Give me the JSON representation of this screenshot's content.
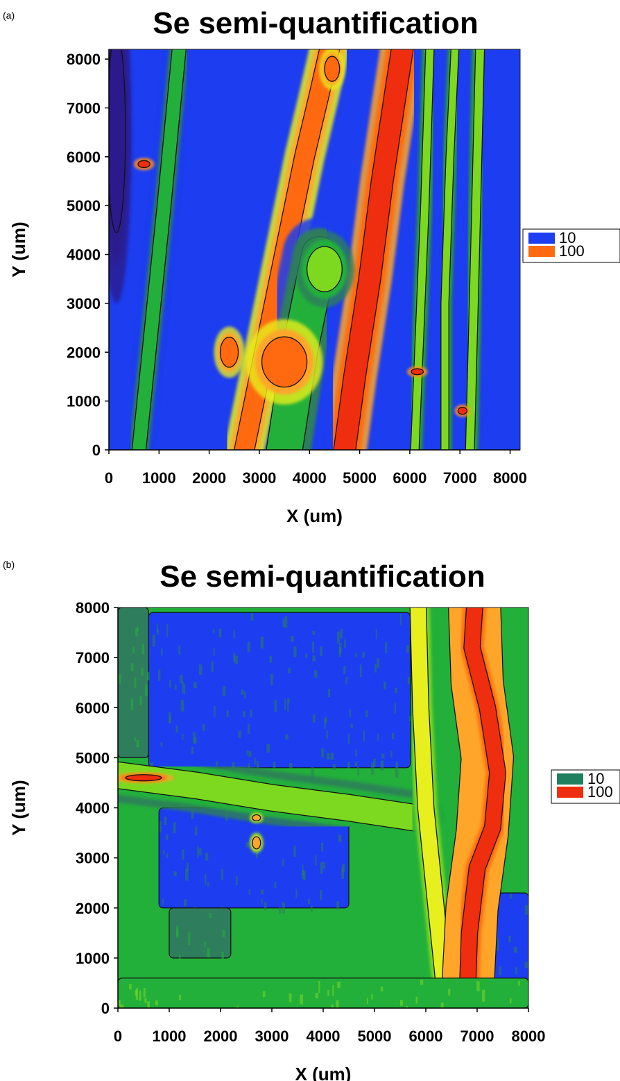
{
  "chart_data": [
    {
      "panel_label": "(a)",
      "type": "heatmap",
      "title": "Se semi-quantification",
      "xlabel": "X (um)",
      "ylabel": "Y (um)",
      "xlim": [
        0,
        8200
      ],
      "ylim": [
        0,
        8200
      ],
      "x_ticks": [
        0,
        1000,
        2000,
        3000,
        4000,
        5000,
        6000,
        7000,
        8000
      ],
      "y_ticks": [
        0,
        1000,
        2000,
        3000,
        4000,
        5000,
        6000,
        7000,
        8000
      ],
      "legend": [
        {
          "label": "10",
          "color": "#1c3df0"
        },
        {
          "label": "100",
          "color": "#ff6a10"
        }
      ],
      "legend_position": "right",
      "colorscale": [
        "#2a1a8c",
        "#1c3df0",
        "#2e7d5c",
        "#22b03a",
        "#7dd820",
        "#e8ef1e",
        "#ffa62a",
        "#ff6a10",
        "#ee2e0e"
      ],
      "colors": {
        "background": "#1c3df0"
      },
      "features": [
        {
          "kind": "band",
          "level": 7,
          "width": 380,
          "points": [
            [
              2700,
              0
            ],
            [
              3000,
              1500
            ],
            [
              3300,
              3000
            ],
            [
              3600,
              4500
            ],
            [
              3900,
              6000
            ],
            [
              4200,
              7300
            ],
            [
              4400,
              8200
            ]
          ]
        },
        {
          "kind": "band",
          "level": 8,
          "width": 420,
          "points": [
            [
              4700,
              0
            ],
            [
              4900,
              1500
            ],
            [
              5200,
              3500
            ],
            [
              5450,
              5500
            ],
            [
              5700,
              7200
            ],
            [
              5850,
              8200
            ]
          ]
        },
        {
          "kind": "band",
          "level": 4,
          "width": 150,
          "points": [
            [
              6100,
              0
            ],
            [
              6200,
              2500
            ],
            [
              6300,
              5000
            ],
            [
              6400,
              8200
            ]
          ]
        },
        {
          "kind": "band",
          "level": 4,
          "width": 140,
          "points": [
            [
              6700,
              0
            ],
            [
              6700,
              3000
            ],
            [
              6800,
              6000
            ],
            [
              6900,
              8200
            ]
          ]
        },
        {
          "kind": "band",
          "level": 4,
          "width": 160,
          "points": [
            [
              7200,
              0
            ],
            [
              7300,
              4000
            ],
            [
              7400,
              8200
            ]
          ]
        },
        {
          "kind": "band",
          "level": 3,
          "width": 260,
          "points": [
            [
              600,
              0
            ],
            [
              800,
              2000
            ],
            [
              1100,
              5000
            ],
            [
              1400,
              8200
            ]
          ]
        },
        {
          "kind": "band",
          "level": 3,
          "width": 700,
          "points": [
            [
              3500,
              0
            ],
            [
              3800,
              2000
            ],
            [
              4200,
              4000
            ]
          ]
        },
        {
          "kind": "blob",
          "level": 7,
          "cx": 3500,
          "cy": 1800,
          "rx": 450,
          "ry": 500
        },
        {
          "kind": "blob",
          "level": 7,
          "cx": 2400,
          "cy": 2000,
          "rx": 180,
          "ry": 300
        },
        {
          "kind": "blob",
          "level": 7,
          "cx": 4450,
          "cy": 7800,
          "rx": 150,
          "ry": 250
        },
        {
          "kind": "blob",
          "level": 8,
          "cx": 700,
          "cy": 5850,
          "rx": 120,
          "ry": 70
        },
        {
          "kind": "blob",
          "level": 8,
          "cx": 6150,
          "cy": 1600,
          "rx": 120,
          "ry": 60
        },
        {
          "kind": "blob",
          "level": 8,
          "cx": 7050,
          "cy": 800,
          "rx": 90,
          "ry": 70
        },
        {
          "kind": "blob",
          "level": 4,
          "cx": 4300,
          "cy": 3700,
          "rx": 350,
          "ry": 450
        },
        {
          "kind": "blob",
          "level": 0,
          "cx": 150,
          "cy": 6500,
          "rx": 180,
          "ry": 2000
        }
      ]
    },
    {
      "panel_label": "(b)",
      "type": "heatmap",
      "title": "Se semi-quantification",
      "xlabel": "X (um)",
      "ylabel": "Y (um)",
      "xlim": [
        0,
        8000
      ],
      "ylim": [
        0,
        8000
      ],
      "x_ticks": [
        0,
        1000,
        2000,
        3000,
        4000,
        5000,
        6000,
        7000,
        8000
      ],
      "y_ticks": [
        0,
        1000,
        2000,
        3000,
        4000,
        5000,
        6000,
        7000,
        8000
      ],
      "legend": [
        {
          "label": "10",
          "color": "#1f8060"
        },
        {
          "label": "100",
          "color": "#ee2e0e"
        }
      ],
      "legend_position": "right",
      "colorscale": [
        "#2a1a8c",
        "#1c3df0",
        "#2e7d5c",
        "#22b03a",
        "#7dd820",
        "#e8ef1e",
        "#ffa62a",
        "#ff6a10",
        "#ee2e0e"
      ],
      "colors": {
        "background": "#22b03a"
      },
      "features": [
        {
          "kind": "rect",
          "level": 1,
          "x0": 600,
          "y0": 4800,
          "x1": 5700,
          "y1": 7900
        },
        {
          "kind": "rect",
          "level": 1,
          "x0": 800,
          "y0": 2000,
          "x1": 4500,
          "y1": 4000
        },
        {
          "kind": "rect",
          "level": 1,
          "x0": 7200,
          "y0": 500,
          "x1": 8000,
          "y1": 2300
        },
        {
          "kind": "rect",
          "level": 2,
          "x0": 0,
          "y0": 5000,
          "x1": 600,
          "y1": 8000
        },
        {
          "kind": "rect",
          "level": 2,
          "x0": 1000,
          "y0": 1000,
          "x1": 2200,
          "y1": 2000
        },
        {
          "kind": "band",
          "level": 4,
          "width": 500,
          "points": [
            [
              0,
              4650
            ],
            [
              1500,
              4450
            ],
            [
              3000,
              4200
            ],
            [
              4500,
              4000
            ],
            [
              5800,
              3800
            ]
          ]
        },
        {
          "kind": "band",
          "level": 5,
          "width": 300,
          "points": [
            [
              6400,
              0
            ],
            [
              6200,
              2000
            ],
            [
              6000,
              4000
            ],
            [
              5900,
              6000
            ],
            [
              5850,
              8000
            ]
          ]
        },
        {
          "kind": "band",
          "level": 6,
          "width": 1000,
          "points": [
            [
              6800,
              0
            ],
            [
              6900,
              2000
            ],
            [
              7100,
              3500
            ],
            [
              7200,
              5000
            ],
            [
              7000,
              6500
            ],
            [
              6950,
              8000
            ]
          ]
        },
        {
          "kind": "band",
          "level": 8,
          "width": 300,
          "points": [
            [
              6800,
              0
            ],
            [
              6850,
              1500
            ],
            [
              7000,
              2800
            ],
            [
              7300,
              3600
            ],
            [
              7400,
              4700
            ],
            [
              7200,
              6000
            ],
            [
              6900,
              7200
            ],
            [
              6950,
              8000
            ]
          ]
        },
        {
          "kind": "blob",
          "level": 8,
          "cx": 500,
          "cy": 4600,
          "rx": 350,
          "ry": 60
        },
        {
          "kind": "blob",
          "level": 6,
          "cx": 2700,
          "cy": 3300,
          "rx": 80,
          "ry": 120
        },
        {
          "kind": "blob",
          "level": 6,
          "cx": 2700,
          "cy": 3800,
          "rx": 80,
          "ry": 60
        },
        {
          "kind": "rect",
          "level": 3,
          "x0": 0,
          "y0": 0,
          "x1": 8000,
          "y1": 600
        }
      ]
    }
  ]
}
